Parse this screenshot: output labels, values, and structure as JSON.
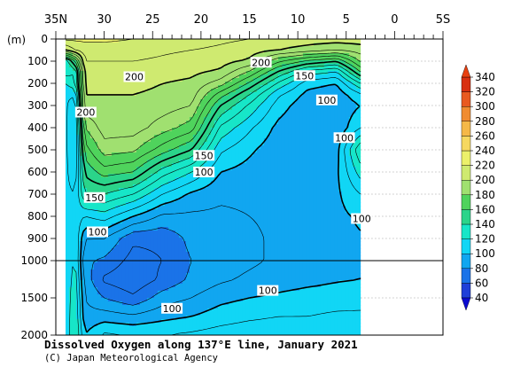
{
  "chart_data": {
    "type": "heatmap",
    "title": "Dissolved Oxygen along 137°E line, January 2021",
    "credit": "(C) Japan Meteorological Agency",
    "x_axis": {
      "label_values": [
        35,
        30,
        25,
        20,
        15,
        10,
        5,
        0,
        -5
      ],
      "labels": [
        "35N",
        "30",
        "25",
        "20",
        "15",
        "10",
        "5",
        "0",
        "5S"
      ],
      "range": [
        35,
        -5
      ]
    },
    "y_axis": {
      "unit_label": "(m)",
      "ticks": [
        0,
        100,
        200,
        300,
        400,
        500,
        600,
        700,
        800,
        900,
        1000,
        1500,
        2000
      ],
      "tick_labels": [
        "0",
        "100",
        "200",
        "300",
        "400",
        "500",
        "600",
        "700",
        "800",
        "900",
        "1000",
        "1500",
        "2000"
      ],
      "range": [
        0,
        2000
      ],
      "scale_break": 1000
    },
    "data_extent_lat": [
      34,
      3.5
    ],
    "colorbar": {
      "levels": [
        40,
        60,
        80,
        100,
        120,
        140,
        160,
        180,
        200,
        220,
        240,
        260,
        280,
        300,
        320,
        340
      ],
      "labels": [
        "40",
        "60",
        "80",
        "100",
        "120",
        "140",
        "160",
        "180",
        "200",
        "220",
        "240",
        "260",
        "280",
        "300",
        "320",
        "340"
      ],
      "colors": [
        "#1f3fd8",
        "#1a73e8",
        "#11a6f0",
        "#11d6f5",
        "#17e6c8",
        "#2bd48a",
        "#4fd35c",
        "#a0e070",
        "#cfea70",
        "#ecf06a",
        "#f6d860",
        "#f5b848",
        "#f08c30",
        "#e85a20",
        "#d83010"
      ],
      "under_color": "#0b0bd0",
      "over_color": "#e84010"
    },
    "profiles": [
      {
        "lat": 34,
        "depths": [
          0,
          50,
          100,
          150,
          200,
          250,
          300,
          400,
          500,
          600,
          700,
          800,
          900,
          1000,
          1250,
          1500,
          1750,
          2000
        ],
        "values": [
          222,
          200,
          130,
          135,
          120,
          112,
          112,
          112,
          112,
          112,
          112,
          112,
          112,
          112,
          112,
          112,
          112,
          112
        ]
      },
      {
        "lat": 33,
        "depths": [
          0,
          50,
          100,
          150,
          200,
          250,
          300,
          400,
          500,
          600,
          700,
          800,
          900,
          1000,
          1250,
          1500,
          1750,
          2000
        ],
        "values": [
          222,
          210,
          160,
          130,
          128,
          112,
          102,
          98,
          100,
          104,
          110,
          116,
          120,
          122,
          125,
          128,
          130,
          132
        ]
      },
      {
        "lat": 32,
        "depths": [
          0,
          50,
          100,
          150,
          200,
          250,
          300,
          400,
          500,
          600,
          700,
          800,
          900,
          1000,
          1250,
          1500,
          1750,
          2000
        ],
        "values": [
          222,
          215,
          210,
          205,
          203,
          200,
          198,
          180,
          165,
          152,
          140,
          110,
          90,
          82,
          86,
          90,
          93,
          100
        ]
      },
      {
        "lat": 30,
        "depths": [
          0,
          50,
          100,
          150,
          200,
          250,
          300,
          400,
          500,
          600,
          700,
          800,
          900,
          1000,
          1250,
          1500,
          1750,
          2000
        ],
        "values": [
          222,
          215,
          210,
          205,
          203,
          200,
          198,
          195,
          185,
          165,
          140,
          115,
          90,
          78,
          68,
          80,
          95,
          112
        ]
      },
      {
        "lat": 27,
        "depths": [
          0,
          50,
          100,
          150,
          200,
          250,
          300,
          400,
          500,
          600,
          700,
          800,
          900,
          1000,
          1250,
          1500,
          1750,
          2000
        ],
        "values": [
          220,
          215,
          210,
          205,
          203,
          200,
          198,
          195,
          182,
          160,
          130,
          100,
          72,
          66,
          62,
          72,
          92,
          110
        ]
      },
      {
        "lat": 24,
        "depths": [
          0,
          50,
          100,
          150,
          200,
          250,
          300,
          400,
          500,
          600,
          700,
          800,
          900,
          1000,
          1250,
          1500,
          1750,
          2000
        ],
        "values": [
          218,
          212,
          208,
          204,
          200,
          198,
          195,
          185,
          165,
          135,
          110,
          88,
          72,
          70,
          72,
          85,
          97,
          110
        ]
      },
      {
        "lat": 21,
        "depths": [
          0,
          50,
          100,
          150,
          200,
          250,
          300,
          400,
          500,
          600,
          700,
          800,
          900,
          1000,
          1250,
          1500,
          1750,
          2000
        ],
        "values": [
          215,
          210,
          205,
          202,
          198,
          195,
          190,
          175,
          150,
          120,
          98,
          88,
          83,
          80,
          82,
          90,
          100,
          112
        ]
      },
      {
        "lat": 18,
        "depths": [
          0,
          50,
          100,
          150,
          200,
          250,
          300,
          400,
          500,
          600,
          700,
          800,
          900,
          1000,
          1250,
          1500,
          1750,
          2000
        ],
        "values": [
          212,
          208,
          204,
          198,
          185,
          165,
          150,
          128,
          112,
          100,
          92,
          88,
          86,
          85,
          88,
          97,
          105,
          115
        ]
      },
      {
        "lat": 15,
        "depths": [
          0,
          50,
          100,
          150,
          200,
          250,
          300,
          400,
          500,
          600,
          700,
          800,
          900,
          1000,
          1250,
          1500,
          1750,
          2000
        ],
        "values": [
          210,
          205,
          198,
          178,
          158,
          140,
          128,
          112,
          102,
          96,
          92,
          90,
          88,
          88,
          92,
          100,
          108,
          117
        ]
      },
      {
        "lat": 12,
        "depths": [
          0,
          50,
          100,
          150,
          200,
          250,
          300,
          400,
          500,
          600,
          700,
          800,
          900,
          1000,
          1250,
          1500,
          1750,
          2000
        ],
        "values": [
          208,
          200,
          172,
          148,
          128,
          112,
          105,
          97,
          93,
          92,
          92,
          92,
          92,
          92,
          95,
          102,
          110,
          117
        ]
      },
      {
        "lat": 9,
        "depths": [
          0,
          50,
          100,
          150,
          200,
          250,
          300,
          400,
          500,
          600,
          700,
          800,
          900,
          1000,
          1250,
          1500,
          1750,
          2000
        ],
        "values": [
          206,
          195,
          158,
          125,
          104,
          97,
          93,
          90,
          92,
          95,
          97,
          96,
          95,
          95,
          97,
          104,
          110,
          118
        ]
      },
      {
        "lat": 6,
        "depths": [
          0,
          50,
          100,
          150,
          200,
          250,
          300,
          400,
          500,
          600,
          700,
          800,
          900,
          1000,
          1250,
          1500,
          1750,
          2000
        ],
        "values": [
          205,
          190,
          150,
          118,
          100,
          94,
          92,
          92,
          96,
          98,
          98,
          97,
          96,
          97,
          99,
          105,
          112,
          118
        ]
      },
      {
        "lat": 3.5,
        "depths": [
          0,
          50,
          100,
          150,
          200,
          250,
          300,
          400,
          500,
          600,
          700,
          800,
          900,
          1000,
          1250,
          1500,
          1750,
          2000
        ],
        "values": [
          205,
          195,
          182,
          160,
          130,
          108,
          100,
          110,
          140,
          125,
          110,
          102,
          99,
          98,
          100,
          106,
          112,
          118
        ]
      }
    ],
    "contour_labels": [
      {
        "text": "200",
        "lat": 26.9,
        "depth": 170
      },
      {
        "text": "200",
        "lat": 31.9,
        "depth": 330
      },
      {
        "text": "200",
        "lat": 13.8,
        "depth": 105
      },
      {
        "text": "150",
        "lat": 9.3,
        "depth": 165
      },
      {
        "text": "100",
        "lat": 7.0,
        "depth": 275
      },
      {
        "text": "150",
        "lat": 19.7,
        "depth": 525
      },
      {
        "text": "100",
        "lat": 19.7,
        "depth": 600
      },
      {
        "text": "100",
        "lat": 5.2,
        "depth": 445
      },
      {
        "text": "150",
        "lat": 31.0,
        "depth": 715
      },
      {
        "text": "100",
        "lat": 30.7,
        "depth": 870
      },
      {
        "text": "100",
        "lat": 3.4,
        "depth": 810
      },
      {
        "text": "100",
        "lat": 13.1,
        "depth": 1400
      },
      {
        "text": "100",
        "lat": 23.0,
        "depth": 1640
      }
    ]
  }
}
